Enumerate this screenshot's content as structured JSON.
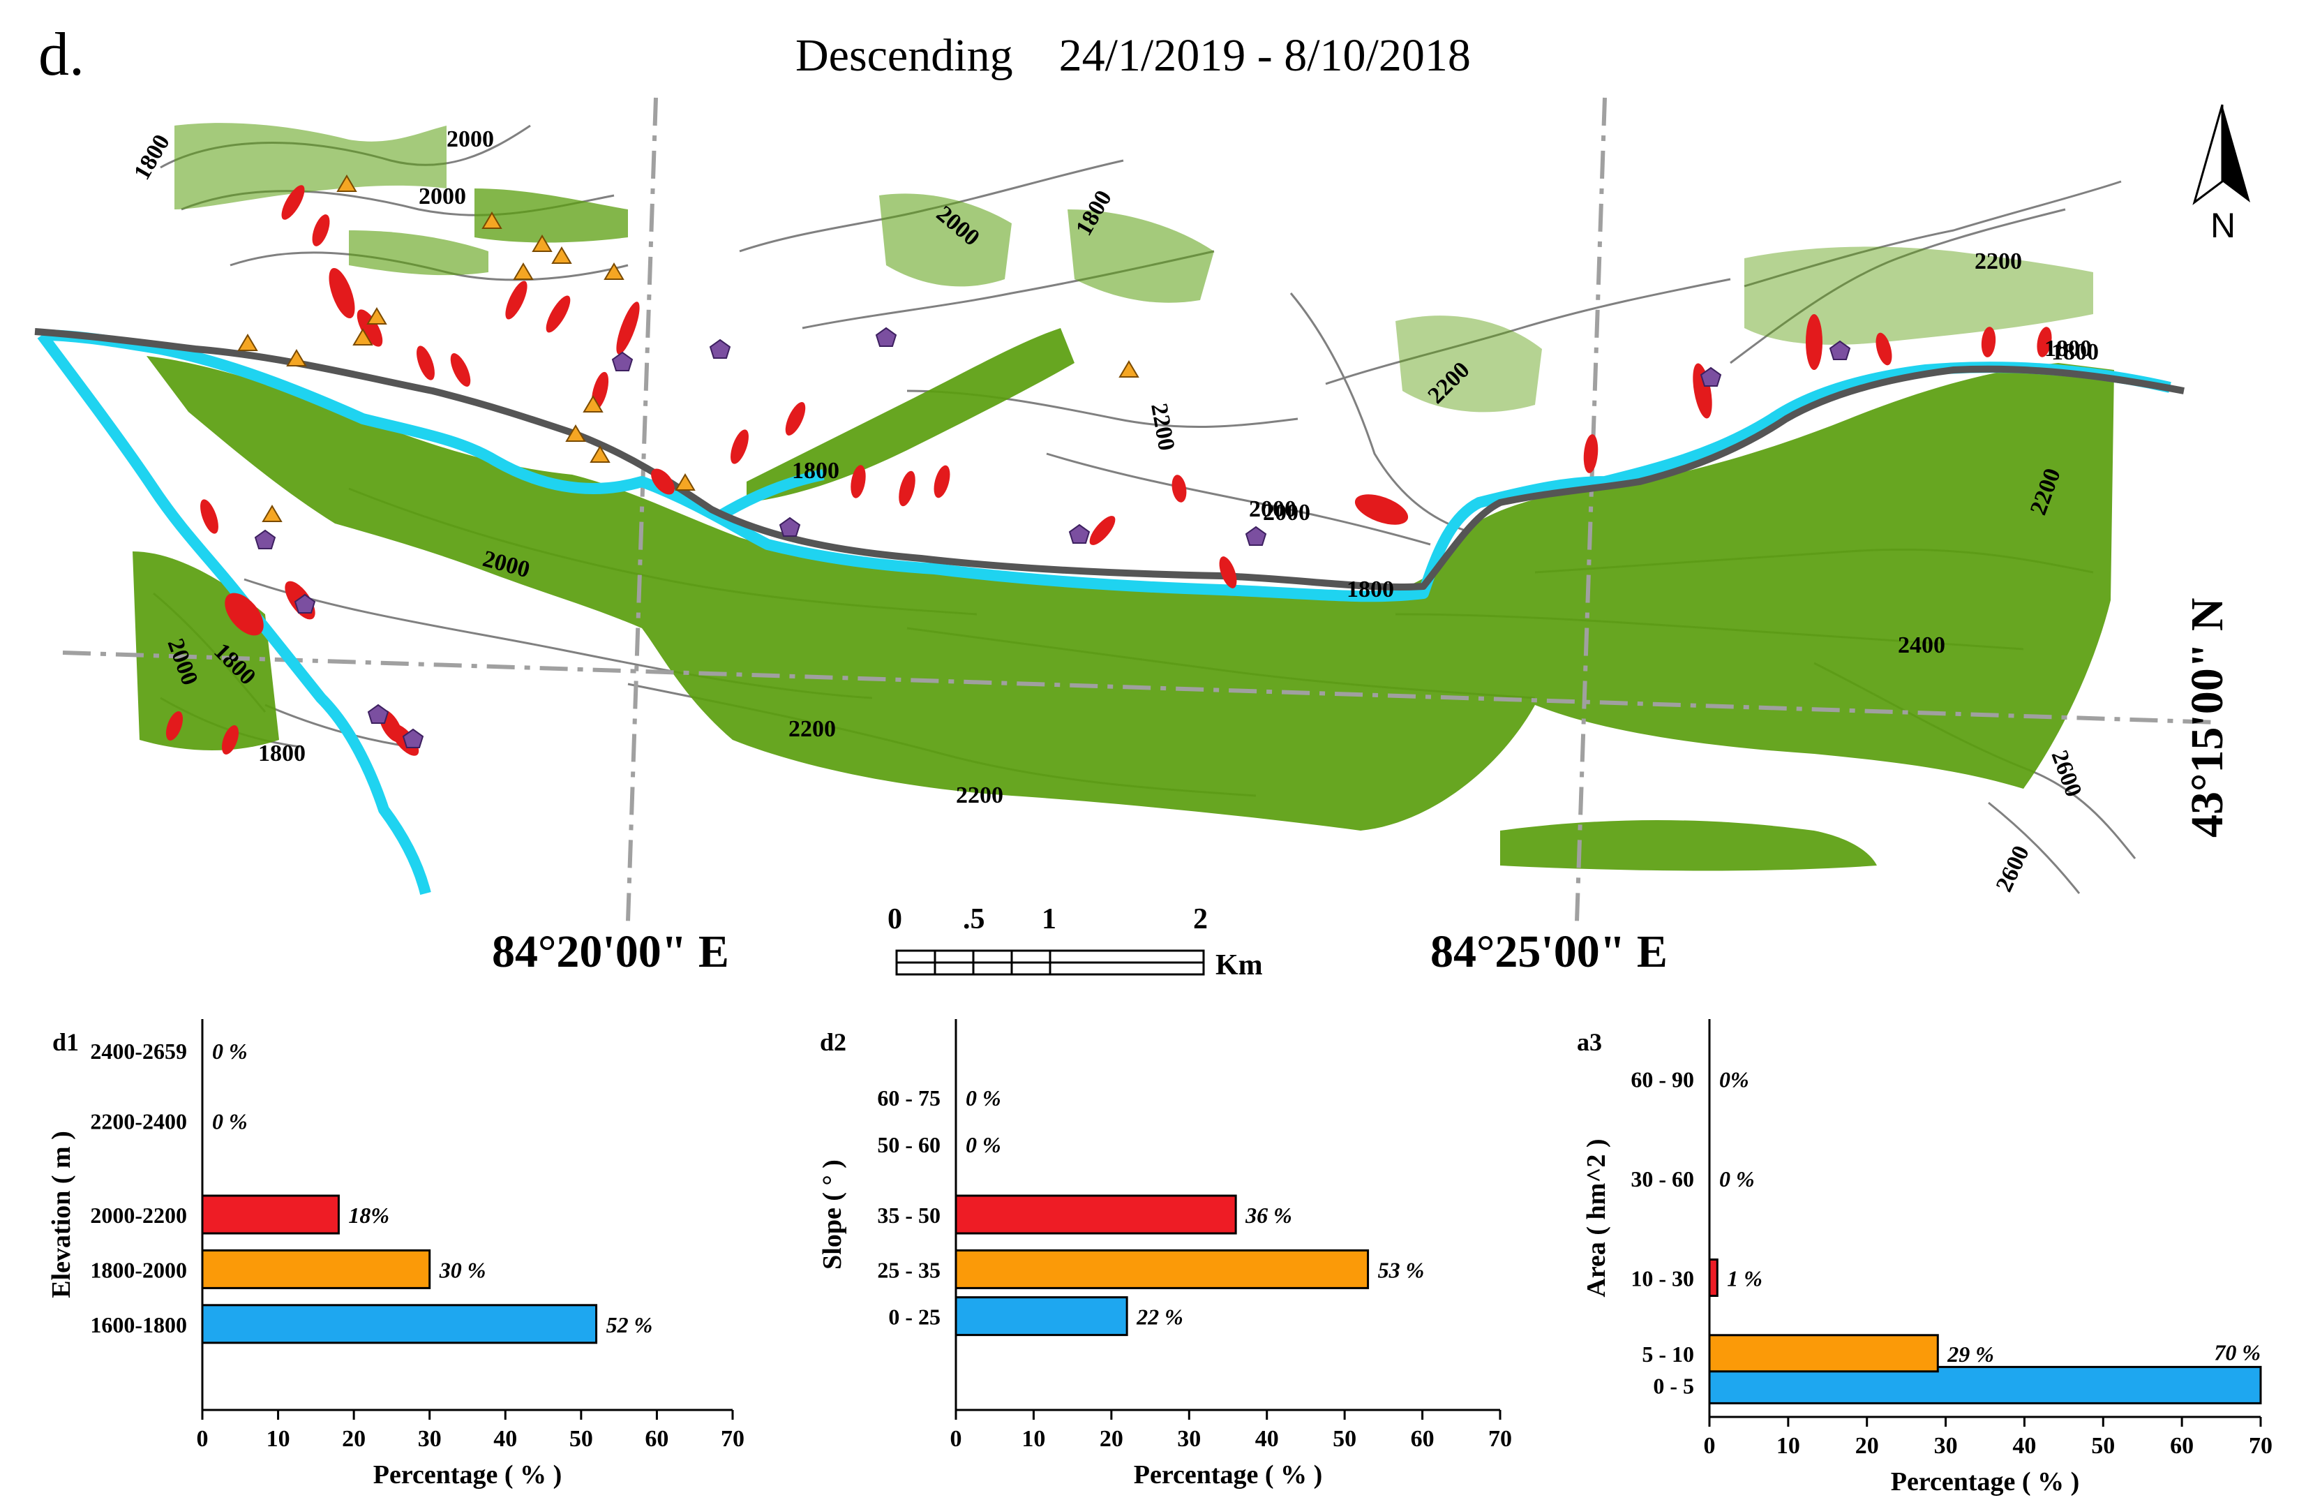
{
  "panel_letter": "d.",
  "title": "Descending    24/1/2019 - 8/10/2018",
  "map": {
    "north_label": "N",
    "coords": {
      "lon1": "84°20'00\" E",
      "lon2": "84°25'00\" E",
      "lat": "43°15'00\" N"
    },
    "scale_bar": {
      "ticks": [
        "0",
        ".5",
        "1",
        "2"
      ],
      "unit": "Km"
    },
    "contour_labels": [
      "1800",
      "2000",
      "2000",
      "2000",
      "1800",
      "2200",
      "1800",
      "2200",
      "1800",
      "2200",
      "1800",
      "2000",
      "2000",
      "1800",
      "2200",
      "2400",
      "2600",
      "2600",
      "2000",
      "1800",
      "1800",
      "2000",
      "2200",
      "2200"
    ],
    "colors": {
      "vegetation": "#5a9e0e",
      "landslide": "#e31a1c",
      "river": "#1fd3f0",
      "road": "#555555",
      "contour": "#777777",
      "triangle_marker": "#f5a623",
      "pentagon_marker": "#7b4fa0"
    }
  },
  "chart_data": [
    {
      "type": "bar",
      "panel_label": "d1",
      "categories": [
        "1600-1800",
        "1800-2000",
        "2000-2200",
        "2200-2400",
        "2400-2659"
      ],
      "values": [
        52,
        30,
        18,
        0,
        0
      ],
      "value_labels": [
        "52 %",
        "30 %",
        "18%",
        "0 %",
        "0 %"
      ],
      "colors": [
        "#1ea7f0",
        "#fb9a08",
        "#ee1c25",
        "#ffffff",
        "#ffffff"
      ],
      "xlabel": "Percentage ( % )",
      "ylabel": "Elevation ( m )",
      "xlim": [
        0,
        70
      ],
      "xticks": [
        "0",
        "10",
        "20",
        "30",
        "40",
        "50",
        "60",
        "70"
      ]
    },
    {
      "type": "bar",
      "panel_label": "d2",
      "categories": [
        "0 - 25",
        "25 - 35",
        "35 - 50",
        "50 - 60",
        "60 - 75"
      ],
      "values": [
        22,
        53,
        36,
        0,
        0
      ],
      "value_labels": [
        "22 %",
        "53 %",
        "36 %",
        "0 %",
        "0 %"
      ],
      "colors": [
        "#1ea7f0",
        "#fb9a08",
        "#ee1c25",
        "#ffffff",
        "#ffffff"
      ],
      "xlabel": "Percentage ( % )",
      "ylabel": "Slope ( ° )",
      "xlim": [
        0,
        70
      ],
      "xticks": [
        "0",
        "10",
        "20",
        "30",
        "40",
        "50",
        "60",
        "70"
      ]
    },
    {
      "type": "bar",
      "panel_label": "a3",
      "categories": [
        "0 - 5",
        "5 - 10",
        "10 - 30",
        "30 - 60",
        "60 - 90"
      ],
      "values": [
        70,
        29,
        1,
        0,
        0
      ],
      "value_labels": [
        "70 %",
        "29 %",
        "1 %",
        "0 %",
        "0%"
      ],
      "colors": [
        "#1ea7f0",
        "#fb9a08",
        "#ee1c25",
        "#ffffff",
        "#ffffff"
      ],
      "xlabel": "Percentage ( % )",
      "ylabel": "Area ( hm^2 )",
      "xlim": [
        0,
        70
      ],
      "xticks": [
        "0",
        "10",
        "20",
        "30",
        "40",
        "50",
        "60",
        "70"
      ]
    }
  ]
}
